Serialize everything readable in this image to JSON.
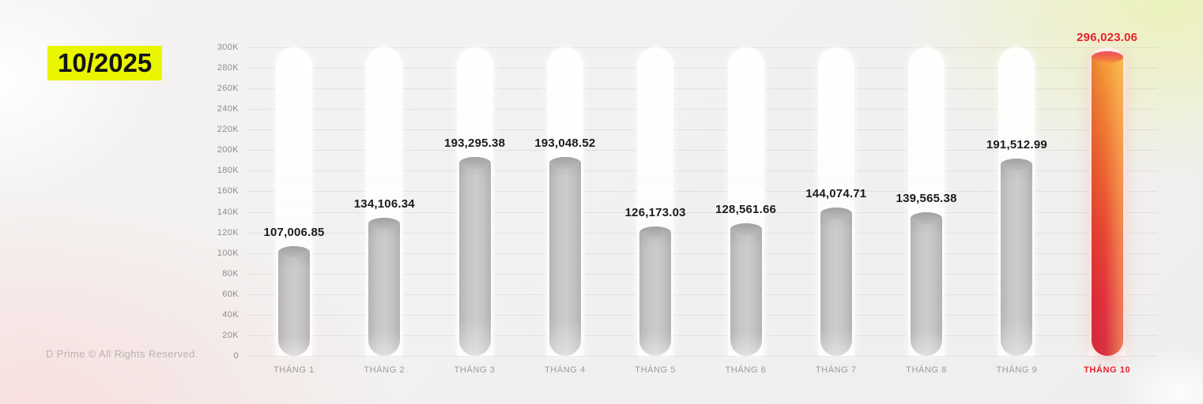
{
  "title": {
    "label": "10/2025",
    "bg_color": "#eaf600",
    "text_color": "#141414"
  },
  "footer": {
    "copyright": "D Prime © All Rights Reserved."
  },
  "chart_data": {
    "type": "bar",
    "title": "10/2025",
    "categories": [
      "THÁNG 1",
      "THÁNG 2",
      "THÁNG 3",
      "THÁNG 4",
      "THÁNG 5",
      "THÁNG 6",
      "THÁNG 7",
      "THÁNG 8",
      "THÁNG 9",
      "THÁNG 10"
    ],
    "values": [
      107006.85,
      134106.34,
      193295.38,
      193048.52,
      126173.03,
      128561.66,
      144074.71,
      139565.38,
      191512.99,
      296023.06
    ],
    "value_labels": [
      "107,006.85",
      "134,106.34",
      "193,295.38",
      "193,048.52",
      "126,173.03",
      "128,561.66",
      "144,074.71",
      "139,565.38",
      "191,512.99",
      "296,023.06"
    ],
    "xlabel": "",
    "ylabel": "",
    "ylim": [
      0,
      300000
    ],
    "ytick_step": 20000,
    "ytick_labels_top_to_bottom": [
      "300K",
      "280K",
      "260K",
      "240K",
      "220K",
      "200K",
      "180K",
      "160K",
      "140K",
      "120K",
      "100K",
      "80K",
      "60K",
      "40K",
      "20K",
      "0"
    ],
    "grid": true,
    "legend": "none",
    "highlight_index": 9,
    "highlight_color": "#e8212b",
    "bar_color": "#c3c2c1",
    "track_color": "#ffffff"
  }
}
